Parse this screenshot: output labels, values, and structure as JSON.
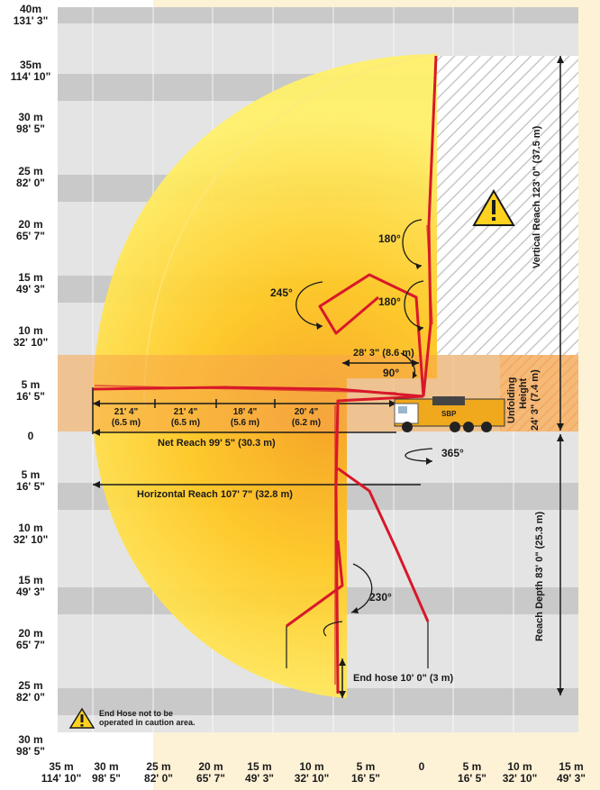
{
  "colors": {
    "accent_boom": "#d8182a",
    "reach_fill": "#ffd21f",
    "unfold_band": "#f5a64c",
    "grid_dark": "#c9c9c9",
    "grid_light": "#e6e6e6",
    "background": "#fdf1d6"
  },
  "y_axis": [
    {
      "m": "40m",
      "ft": "131' 3\""
    },
    {
      "m": "35m",
      "ft": "114' 10\""
    },
    {
      "m": "30 m",
      "ft": "98' 5\""
    },
    {
      "m": "25 m",
      "ft": "82' 0\""
    },
    {
      "m": "20 m",
      "ft": "65' 7\""
    },
    {
      "m": "15 m",
      "ft": "49' 3\""
    },
    {
      "m": "10 m",
      "ft": "32' 10\""
    },
    {
      "m": "5 m",
      "ft": "16' 5\""
    },
    {
      "m": "0",
      "ft": ""
    },
    {
      "m": "5 m",
      "ft": "16' 5\""
    },
    {
      "m": "10 m",
      "ft": "32' 10\""
    },
    {
      "m": "15 m",
      "ft": "49' 3\""
    },
    {
      "m": "20 m",
      "ft": "65' 7\""
    },
    {
      "m": "25 m",
      "ft": "82' 0\""
    },
    {
      "m": "30 m",
      "ft": "98' 5\""
    }
  ],
  "x_axis": [
    {
      "m": "35 m",
      "ft": "114' 10\""
    },
    {
      "m": "30 m",
      "ft": "98' 5\""
    },
    {
      "m": "25 m",
      "ft": "82' 0\""
    },
    {
      "m": "20 m",
      "ft": "65' 7\""
    },
    {
      "m": "15 m",
      "ft": "49' 3\""
    },
    {
      "m": "10 m",
      "ft": "32' 10\""
    },
    {
      "m": "5 m",
      "ft": "16' 5\""
    },
    {
      "m": "0",
      "ft": ""
    },
    {
      "m": "5 m",
      "ft": "16' 5\""
    },
    {
      "m": "10 m",
      "ft": "32' 10\""
    },
    {
      "m": "15 m",
      "ft": "49' 3\""
    }
  ],
  "sections": [
    {
      "ft": "21' 4\"",
      "m": "(6.5 m)"
    },
    {
      "ft": "21' 4\"",
      "m": "(6.5 m)"
    },
    {
      "ft": "18' 4\"",
      "m": "(5.6 m)"
    },
    {
      "ft": "20' 4\"",
      "m": "(6.2 m)"
    }
  ],
  "labels": {
    "net_reach": "Net Reach 99' 5\" (30.3 m)",
    "horizontal_reach": "Horizontal Reach 107' 7\" (32.8 m)",
    "vertical_reach": "Vertical Reach 123' 0\" (37.5 m)",
    "reach_depth": "Reach Depth 83' 0\" (25.3 m)",
    "unfolding_1": "Unfolding",
    "unfolding_2": "Height",
    "unfolding_3": "24' 3\" (7.4 m)",
    "first_section": "28' 3\" (8.6 m)",
    "end_hose": "End hose 10' 0\" (3 m)",
    "warning_line1": "End Hose not to be",
    "warning_line2": "operated in caution area.",
    "truck_brand": "SBP"
  },
  "angles": {
    "a180_top": "180°",
    "a180_mid": "180°",
    "a245": "245°",
    "a90": "90°",
    "a365": "365°",
    "a230": "230°"
  }
}
